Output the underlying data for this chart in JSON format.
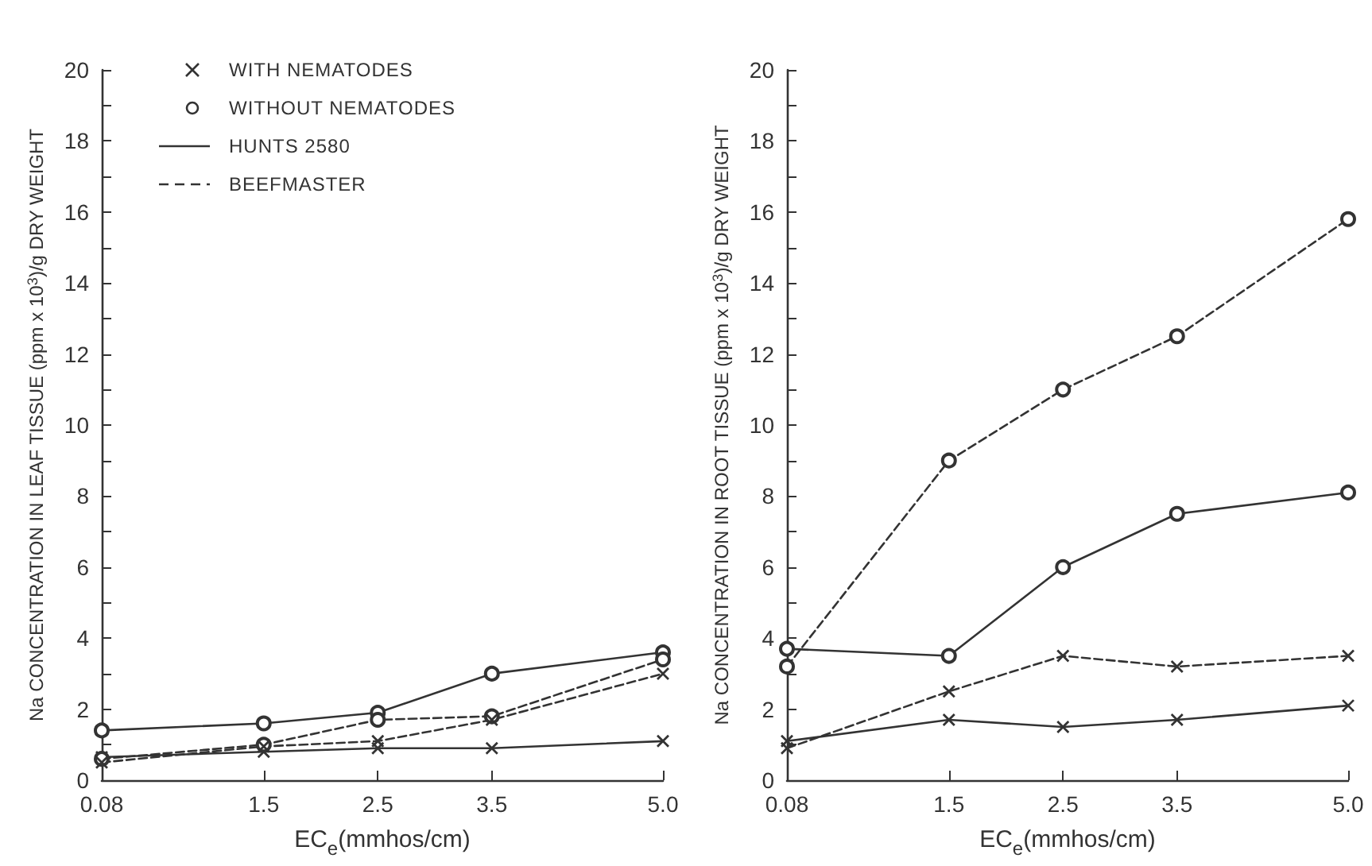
{
  "chart_data": [
    {
      "type": "line",
      "xlabel": "EC$_{e}$(mmhos/cm)",
      "ylabel": "Na CONCENTRATION IN LEAF TISSUE (ppm x 10$^{3}$)/g DRY WEIGHT",
      "x": [
        0.08,
        1.5,
        2.5,
        3.5,
        5.0
      ],
      "xlim": [
        0.08,
        5.0
      ],
      "xticks": [
        0.08,
        1.5,
        2.5,
        3.5,
        {
          "value": 5.0,
          "label": "5.0"
        }
      ],
      "ylim": [
        0,
        20
      ],
      "yticks": [
        0,
        {
          "value": 1,
          "label": null
        },
        2,
        {
          "value": 3,
          "label": null
        },
        4,
        {
          "value": 5,
          "label": null
        },
        6,
        {
          "value": 7,
          "label": null
        },
        8,
        {
          "value": 9,
          "label": null
        },
        10,
        {
          "value": 11,
          "label": null
        },
        12,
        {
          "value": 13,
          "label": null
        },
        14,
        {
          "value": 15,
          "label": null
        },
        16,
        {
          "value": 17,
          "label": null
        },
        18,
        {
          "value": 19,
          "label": null
        },
        20
      ],
      "grid": false,
      "annotations": [
        "WITH NEMATODES",
        "WITHOUT NEMATODES",
        "HUNTS 2580",
        "BEEFMASTER"
      ],
      "series": [
        {
          "color": "#333333",
          "marker": "circle",
          "line_style": "solid",
          "values": [
            1.4,
            1.6,
            1.9,
            3.0,
            3.6
          ]
        },
        {
          "color": "#333333",
          "marker": "cross",
          "line_style": "solid",
          "values": [
            0.65,
            0.8,
            0.9,
            0.9,
            1.1
          ]
        },
        {
          "color": "#333333",
          "marker": "circle",
          "line_style": "dashed",
          "values": [
            0.6,
            1.0,
            1.7,
            1.8,
            3.4
          ]
        },
        {
          "color": "#333333",
          "marker": "cross",
          "line_style": "dashed",
          "values": [
            0.5,
            0.95,
            1.1,
            1.7,
            3.0
          ]
        }
      ]
    },
    {
      "type": "line",
      "xlabel": "EC$_{e}$(mmhos/cm)",
      "ylabel": "Na CONCENTRATION IN ROOT TISSUE (ppm x 10$^{3}$)/g DRY WEIGHT",
      "x": [
        0.08,
        1.5,
        2.5,
        3.5,
        5.0
      ],
      "xlim": [
        0.08,
        5.0
      ],
      "xticks": [
        0.08,
        1.5,
        2.5,
        3.5,
        {
          "value": 5.0,
          "label": "5.0"
        }
      ],
      "ylim": [
        0,
        20
      ],
      "yticks": [
        0,
        {
          "value": 1,
          "label": null
        },
        2,
        {
          "value": 3,
          "label": null
        },
        4,
        {
          "value": 5,
          "label": null
        },
        6,
        {
          "value": 7,
          "label": null
        },
        8,
        {
          "value": 9,
          "label": null
        },
        10,
        {
          "value": 11,
          "label": null
        },
        12,
        {
          "value": 13,
          "label": null
        },
        14,
        {
          "value": 15,
          "label": null
        },
        16,
        {
          "value": 17,
          "label": null
        },
        18,
        {
          "value": 19,
          "label": null
        },
        20
      ],
      "grid": false,
      "series": [
        {
          "color": "#333333",
          "marker": "circle",
          "line_style": "solid",
          "values": [
            3.7,
            3.5,
            6.0,
            7.5,
            8.1
          ]
        },
        {
          "color": "#333333",
          "marker": "cross",
          "line_style": "solid",
          "values": [
            1.1,
            1.7,
            1.5,
            1.7,
            2.1
          ]
        },
        {
          "color": "#333333",
          "marker": "circle",
          "line_style": "dashed",
          "values": [
            3.2,
            9.0,
            11.0,
            12.5,
            15.8
          ]
        },
        {
          "color": "#333333",
          "marker": "cross",
          "line_style": "dashed",
          "values": [
            0.9,
            2.5,
            3.5,
            3.2,
            3.5
          ]
        }
      ]
    }
  ]
}
